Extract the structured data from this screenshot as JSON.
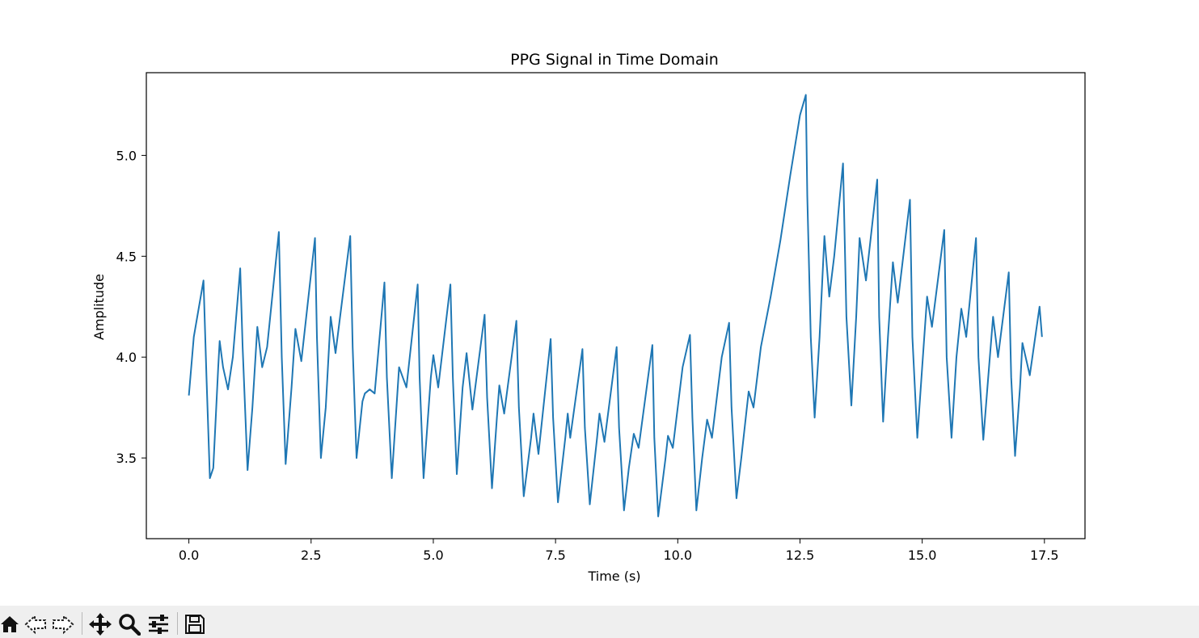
{
  "chart_data": {
    "type": "line",
    "title": "PPG Signal in Time Domain",
    "xlabel": "Time (s)",
    "ylabel": "Amplitude",
    "xlim": [
      -0.87,
      18.33
    ],
    "ylim": [
      3.1,
      5.41
    ],
    "xticks": [
      0.0,
      2.5,
      5.0,
      7.5,
      10.0,
      12.5,
      15.0,
      17.5
    ],
    "xtick_labels": [
      "0.0",
      "2.5",
      "5.0",
      "7.5",
      "10.0",
      "12.5",
      "15.0",
      "17.5"
    ],
    "yticks": [
      3.5,
      4.0,
      4.5,
      5.0
    ],
    "ytick_labels": [
      "3.5",
      "4.0",
      "4.5",
      "5.0"
    ],
    "grid": false,
    "line_color": "#1f77b4",
    "series": [
      {
        "points": [
          [
            0.0,
            3.81
          ],
          [
            0.1,
            4.1
          ],
          [
            0.3,
            4.38
          ],
          [
            0.36,
            3.9
          ],
          [
            0.43,
            3.4
          ],
          [
            0.5,
            3.45
          ],
          [
            0.6,
            3.95
          ],
          [
            0.63,
            4.08
          ],
          [
            0.7,
            3.95
          ],
          [
            0.8,
            3.84
          ],
          [
            0.9,
            4.0
          ],
          [
            1.05,
            4.44
          ],
          [
            1.1,
            4.05
          ],
          [
            1.2,
            3.44
          ],
          [
            1.3,
            3.75
          ],
          [
            1.4,
            4.15
          ],
          [
            1.5,
            3.95
          ],
          [
            1.6,
            4.05
          ],
          [
            1.84,
            4.62
          ],
          [
            1.9,
            4.0
          ],
          [
            1.98,
            3.47
          ],
          [
            2.1,
            3.85
          ],
          [
            2.18,
            4.14
          ],
          [
            2.3,
            3.98
          ],
          [
            2.58,
            4.59
          ],
          [
            2.62,
            4.1
          ],
          [
            2.7,
            3.5
          ],
          [
            2.8,
            3.75
          ],
          [
            2.9,
            4.2
          ],
          [
            3.0,
            4.02
          ],
          [
            3.3,
            4.6
          ],
          [
            3.35,
            4.05
          ],
          [
            3.43,
            3.5
          ],
          [
            3.55,
            3.78
          ],
          [
            3.6,
            3.82
          ],
          [
            3.7,
            3.84
          ],
          [
            3.8,
            3.82
          ],
          [
            4.0,
            4.37
          ],
          [
            4.05,
            3.9
          ],
          [
            4.15,
            3.4
          ],
          [
            4.3,
            3.95
          ],
          [
            4.45,
            3.85
          ],
          [
            4.68,
            4.36
          ],
          [
            4.72,
            3.9
          ],
          [
            4.8,
            3.4
          ],
          [
            4.95,
            3.9
          ],
          [
            5.0,
            4.01
          ],
          [
            5.1,
            3.85
          ],
          [
            5.35,
            4.36
          ],
          [
            5.4,
            3.9
          ],
          [
            5.48,
            3.42
          ],
          [
            5.6,
            3.85
          ],
          [
            5.68,
            4.02
          ],
          [
            5.8,
            3.74
          ],
          [
            6.05,
            4.21
          ],
          [
            6.1,
            3.8
          ],
          [
            6.2,
            3.35
          ],
          [
            6.3,
            3.7
          ],
          [
            6.35,
            3.86
          ],
          [
            6.45,
            3.72
          ],
          [
            6.7,
            4.18
          ],
          [
            6.75,
            3.75
          ],
          [
            6.85,
            3.31
          ],
          [
            7.0,
            3.6
          ],
          [
            7.05,
            3.72
          ],
          [
            7.15,
            3.52
          ],
          [
            7.4,
            4.09
          ],
          [
            7.45,
            3.7
          ],
          [
            7.55,
            3.28
          ],
          [
            7.7,
            3.6
          ],
          [
            7.75,
            3.72
          ],
          [
            7.8,
            3.6
          ],
          [
            8.05,
            4.04
          ],
          [
            8.1,
            3.65
          ],
          [
            8.2,
            3.27
          ],
          [
            8.35,
            3.6
          ],
          [
            8.4,
            3.72
          ],
          [
            8.5,
            3.58
          ],
          [
            8.75,
            4.05
          ],
          [
            8.8,
            3.65
          ],
          [
            8.9,
            3.24
          ],
          [
            9.0,
            3.45
          ],
          [
            9.1,
            3.62
          ],
          [
            9.2,
            3.55
          ],
          [
            9.48,
            4.06
          ],
          [
            9.52,
            3.6
          ],
          [
            9.6,
            3.21
          ],
          [
            9.75,
            3.5
          ],
          [
            9.8,
            3.61
          ],
          [
            9.9,
            3.55
          ],
          [
            10.1,
            3.95
          ],
          [
            10.25,
            4.11
          ],
          [
            10.3,
            3.7
          ],
          [
            10.38,
            3.24
          ],
          [
            10.5,
            3.5
          ],
          [
            10.6,
            3.69
          ],
          [
            10.7,
            3.6
          ],
          [
            10.9,
            4.0
          ],
          [
            11.05,
            4.17
          ],
          [
            11.1,
            3.75
          ],
          [
            11.2,
            3.3
          ],
          [
            11.3,
            3.5
          ],
          [
            11.45,
            3.83
          ],
          [
            11.55,
            3.75
          ],
          [
            11.7,
            4.05
          ],
          [
            11.9,
            4.3
          ],
          [
            12.1,
            4.58
          ],
          [
            12.3,
            4.9
          ],
          [
            12.5,
            5.2
          ],
          [
            12.62,
            5.3
          ],
          [
            12.65,
            4.8
          ],
          [
            12.72,
            4.1
          ],
          [
            12.8,
            3.7
          ],
          [
            12.9,
            4.1
          ],
          [
            13.0,
            4.6
          ],
          [
            13.1,
            4.3
          ],
          [
            13.2,
            4.5
          ],
          [
            13.38,
            4.96
          ],
          [
            13.45,
            4.2
          ],
          [
            13.55,
            3.76
          ],
          [
            13.65,
            4.2
          ],
          [
            13.72,
            4.59
          ],
          [
            13.85,
            4.38
          ],
          [
            14.08,
            4.88
          ],
          [
            14.12,
            4.2
          ],
          [
            14.2,
            3.68
          ],
          [
            14.3,
            4.1
          ],
          [
            14.4,
            4.47
          ],
          [
            14.5,
            4.27
          ],
          [
            14.75,
            4.78
          ],
          [
            14.8,
            4.1
          ],
          [
            14.9,
            3.6
          ],
          [
            15.0,
            3.95
          ],
          [
            15.1,
            4.3
          ],
          [
            15.2,
            4.15
          ],
          [
            15.45,
            4.63
          ],
          [
            15.5,
            4.0
          ],
          [
            15.6,
            3.6
          ],
          [
            15.7,
            4.0
          ],
          [
            15.8,
            4.24
          ],
          [
            15.9,
            4.1
          ],
          [
            16.1,
            4.59
          ],
          [
            16.15,
            4.0
          ],
          [
            16.25,
            3.59
          ],
          [
            16.35,
            3.9
          ],
          [
            16.45,
            4.2
          ],
          [
            16.55,
            4.0
          ],
          [
            16.77,
            4.42
          ],
          [
            16.82,
            3.9
          ],
          [
            16.9,
            3.51
          ],
          [
            17.0,
            3.85
          ],
          [
            17.05,
            4.07
          ],
          [
            17.2,
            3.91
          ],
          [
            17.4,
            4.25
          ],
          [
            17.45,
            4.1
          ]
        ]
      }
    ]
  },
  "toolbar": {
    "buttons": [
      {
        "icon": "home-icon"
      },
      {
        "icon": "back-arrow-icon"
      },
      {
        "icon": "forward-arrow-icon"
      },
      {
        "icon": "pan-icon"
      },
      {
        "icon": "zoom-icon"
      },
      {
        "icon": "configure-subplots-icon"
      },
      {
        "icon": "save-icon"
      }
    ]
  }
}
